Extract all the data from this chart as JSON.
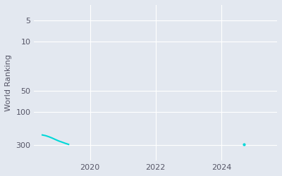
{
  "ylabel": "World Ranking",
  "background_color": "#e3e8f0",
  "line_color": "#00d8d8",
  "line_width": 1.5,
  "yticks": [
    300,
    100,
    50,
    10,
    5
  ],
  "xticks": [
    2020,
    2022,
    2024
  ],
  "xlim": [
    2018.3,
    2025.7
  ],
  "ylim": [
    3,
    500
  ],
  "data_x": [
    2018.55,
    2018.65,
    2018.75,
    2018.85,
    2018.95,
    2019.05,
    2019.15,
    2019.25,
    2019.35
  ],
  "data_y": [
    215,
    220,
    228,
    238,
    250,
    262,
    272,
    283,
    293
  ],
  "dot_x": [
    2024.7
  ],
  "dot_y": [
    293
  ]
}
